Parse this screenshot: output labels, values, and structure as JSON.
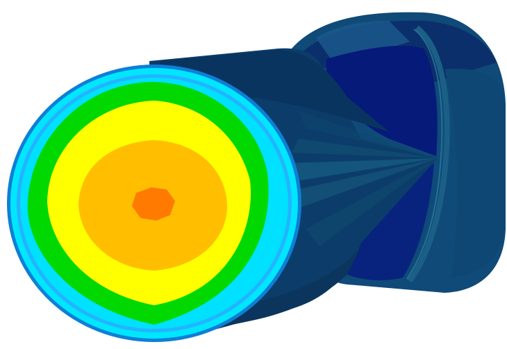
{
  "scene": {
    "subject": "fea-contour-cylinder",
    "palette": {
      "background": "#ffffff",
      "body_dark": "#0b3a66",
      "body_mid": "#0f4c7d",
      "body_edge": "#0b2f55",
      "deep_blue": "#061a7a",
      "cap_outer": "#1a8cff",
      "cap_cyan": "#00e6ff",
      "cap_lightblue": "#33b8ff",
      "cap_green": "#00d800",
      "cap_yellow": "#ffff00",
      "cap_amber": "#ffbf00",
      "cap_orange": "#ff7a00"
    }
  }
}
